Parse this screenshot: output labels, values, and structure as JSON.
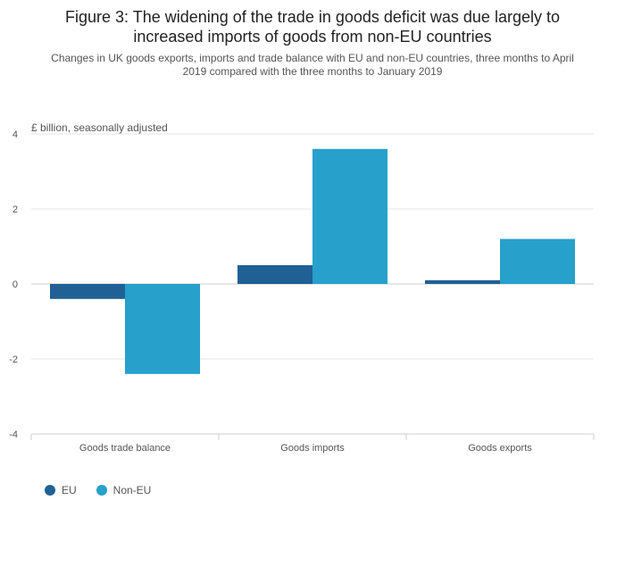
{
  "title_lines": [
    "Figure 3: The widening of the trade in goods deficit was due largely to",
    "increased imports of goods from non-EU countries"
  ],
  "subtitle_lines": [
    "Changes in UK goods exports, imports and trade balance with EU and non-EU countries, three months to April",
    "2019 compared with the three months to January 2019"
  ],
  "chart_data": {
    "type": "bar",
    "title": "Figure 3: The widening of the trade in goods deficit was due largely to increased imports of goods from non-EU countries",
    "subtitle": "Changes in UK goods exports, imports and trade balance with EU and non-EU countries, three months to April 2019 compared with the three months to January 2019",
    "ylabel": "£ billion, seasonally adjusted",
    "xlabel": "",
    "ylim": [
      -4,
      4
    ],
    "yticks": [
      4,
      2,
      0,
      -2,
      -4
    ],
    "yticklabels": [
      "4",
      "2",
      "0",
      "-2",
      "-4"
    ],
    "categories": [
      "Goods trade balance",
      "Goods imports",
      "Goods exports"
    ],
    "series": [
      {
        "name": "EU",
        "color": "#206095",
        "values": [
          -0.4,
          0.5,
          0.1
        ]
      },
      {
        "name": "Non-EU",
        "color": "#27a0cc",
        "values": [
          -2.4,
          3.6,
          1.2
        ]
      }
    ],
    "grid": true,
    "legend": "bottom-left"
  }
}
